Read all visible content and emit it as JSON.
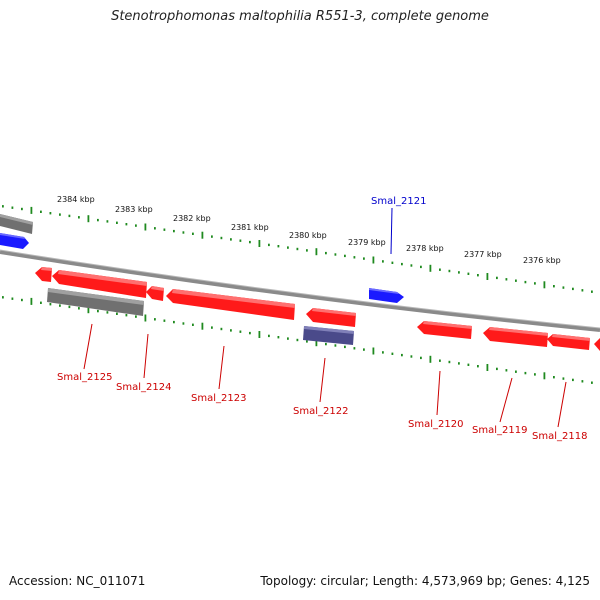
{
  "title": "Stenotrophomonas maltophilia R551-3, complete genome",
  "footer": {
    "accession": "Accession: NC_011071",
    "summary": "Topology: circular; Length: 4,573,969 bp; Genes: 4,125"
  },
  "scale_labels": [
    "2384 kbp",
    "2383 kbp",
    "2382 kbp",
    "2381 kbp",
    "2380 kbp",
    "2379 kbp",
    "2378 kbp",
    "2377 kbp",
    "2376 kbp"
  ],
  "gene_labels": [
    {
      "text": "Smal_2121",
      "color": "#0000cc"
    },
    {
      "text": "Smal_2125",
      "color": "#cc0000"
    },
    {
      "text": "Smal_2124",
      "color": "#cc0000"
    },
    {
      "text": "Smal_2123",
      "color": "#cc0000"
    },
    {
      "text": "Smal_2122",
      "color": "#cc0000"
    },
    {
      "text": "Smal_2120",
      "color": "#cc0000"
    },
    {
      "text": "Smal_2119",
      "color": "#cc0000"
    },
    {
      "text": "Smal_2118",
      "color": "#cc0000"
    }
  ],
  "colors": {
    "backbone": "#8a8a8a",
    "forward_gene": "#1a1aff",
    "reverse_gene": "#ff1a1a",
    "pseudo_gray": "#707070",
    "purple_gene": "#4a4a8a",
    "tick": "#1f8a1f"
  }
}
